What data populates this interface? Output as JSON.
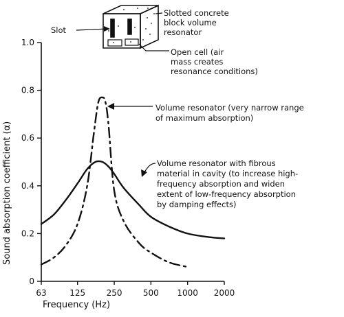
{
  "chart_data": {
    "type": "line",
    "xlabel": "Frequency (Hz)",
    "ylabel": "Sound absorption coefficient (α)",
    "x_scale": "log",
    "x_ticks": [
      63,
      125,
      250,
      500,
      1000,
      2000
    ],
    "x_tick_labels": [
      "63",
      "125",
      "250",
      "500",
      "1000",
      "2000"
    ],
    "xlim": [
      63,
      2000
    ],
    "ylim": [
      0,
      1.0
    ],
    "y_ticks": [
      0,
      0.2,
      0.4,
      0.6,
      0.8,
      1.0
    ],
    "y_tick_labels": [
      "0",
      "0.2",
      "0.4",
      "0.6",
      "0.8",
      "1.0"
    ],
    "grid": false,
    "legend": "none",
    "series": [
      {
        "line_style": "dash-dot",
        "x": [
          63,
          80,
          100,
          125,
          150,
          170,
          185,
          200,
          212,
          225,
          250,
          300,
          400,
          500,
          700,
          1000
        ],
        "y": [
          0.07,
          0.1,
          0.15,
          0.24,
          0.4,
          0.62,
          0.75,
          0.77,
          0.75,
          0.65,
          0.38,
          0.25,
          0.16,
          0.12,
          0.08,
          0.06
        ]
      },
      {
        "line_style": "solid",
        "x": [
          63,
          80,
          100,
          125,
          150,
          175,
          200,
          225,
          250,
          300,
          400,
          500,
          700,
          1000,
          1500,
          2000
        ],
        "y": [
          0.24,
          0.28,
          0.34,
          0.41,
          0.47,
          0.5,
          0.5,
          0.48,
          0.45,
          0.39,
          0.32,
          0.27,
          0.23,
          0.2,
          0.185,
          0.18
        ]
      }
    ],
    "annotations": [
      {
        "target": "series-0",
        "lines": [
          "Volume resonator (very narrow range",
          "of maximum absorption)"
        ]
      },
      {
        "target": "series-1",
        "lines": [
          "Volume resonator with fibrous",
          "material in cavity (to increase high-",
          "frequency absorption and widen",
          "extent of low-frequency absorption",
          "by damping effects)"
        ]
      }
    ],
    "inset": {
      "label_slot": "Slot",
      "label_block": [
        "Slotted concrete",
        "block volume",
        "resonator"
      ],
      "label_cell": [
        "Open cell (air",
        "mass creates",
        "resonance conditions)"
      ]
    }
  }
}
